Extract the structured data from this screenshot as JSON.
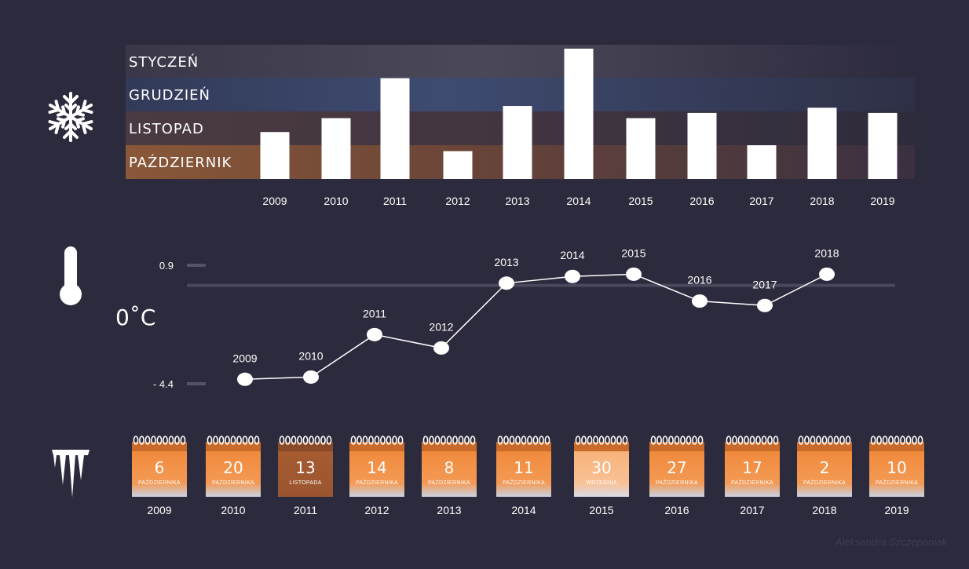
{
  "colors": {
    "background": "#2c2a3d",
    "band_styczen": "#4a4858",
    "band_grudzien": "#3e4a6c",
    "band_listopad": "#4c3c44",
    "band_pazdziernik": "#8c5a3a",
    "bar": "#ffffff",
    "line": "#ffffff",
    "calendar_orange": "#f0883a",
    "calendar_light": "#f8b070",
    "calendar_brown": "#a65b30",
    "calendar_bottom": "#c9d2e2"
  },
  "icons": {
    "row1": "snowflake-icon",
    "row2": "thermometer-icon",
    "row3": "icicles-icon"
  },
  "chart_data": [
    {
      "type": "bar",
      "categories": [
        "2009",
        "2010",
        "2011",
        "2012",
        "2013",
        "2014",
        "2015",
        "2016",
        "2017",
        "2018",
        "2019"
      ],
      "band_labels": [
        "STYCZEŃ",
        "GRUDZIEŃ",
        "LISTOPAD",
        "PAŹDZIERNIK"
      ],
      "values": [
        1.35,
        1.75,
        2.9,
        0.8,
        2.1,
        3.75,
        1.75,
        1.9,
        0.97,
        2.05,
        1.9
      ],
      "ylim": [
        0,
        4
      ],
      "title": "",
      "xlabel": "",
      "ylabel": ""
    },
    {
      "type": "line",
      "x": [
        "2009",
        "2010",
        "2011",
        "2012",
        "2013",
        "2014",
        "2015",
        "2016",
        "2017",
        "2018"
      ],
      "values": [
        -4.2,
        -4.1,
        -2.2,
        -2.8,
        0.1,
        0.4,
        0.5,
        -0.7,
        -0.9,
        0.5
      ],
      "point_labels": [
        "2009",
        "2010",
        "2011",
        "2012",
        "2013",
        "2014",
        "2015",
        "2016",
        "2017",
        "2018"
      ],
      "yticks": [
        {
          "value": 0.9,
          "label": "0.9"
        },
        {
          "value": -4.4,
          "label": "- 4.4"
        }
      ],
      "unit_label": "0˚C",
      "reference_line": 0
    },
    {
      "type": "table",
      "items": [
        {
          "year": "2009",
          "day": "6",
          "month": "PAŹDZIERNIKA",
          "tone": "orange"
        },
        {
          "year": "2010",
          "day": "20",
          "month": "PAŹDZIERNIKA",
          "tone": "orange"
        },
        {
          "year": "2011",
          "day": "13",
          "month": "LISTOPADA",
          "tone": "brown"
        },
        {
          "year": "2012",
          "day": "14",
          "month": "PAŹDZIERNIKA",
          "tone": "orange"
        },
        {
          "year": "2013",
          "day": "8",
          "month": "PAŹDZIERNIKA",
          "tone": "orange"
        },
        {
          "year": "2014",
          "day": "11",
          "month": "PAŹDZIERNIKA",
          "tone": "orange"
        },
        {
          "year": "2015",
          "day": "30",
          "month": "WRZEŚNIA",
          "tone": "light"
        },
        {
          "year": "2016",
          "day": "27",
          "month": "PAŹDZIERNIKA",
          "tone": "orange"
        },
        {
          "year": "2017",
          "day": "17",
          "month": "PAŹDZIERNIKA",
          "tone": "orange"
        },
        {
          "year": "2018",
          "day": "2",
          "month": "PAŹDZIERNIKA",
          "tone": "orange"
        },
        {
          "year": "2019",
          "day": "10",
          "month": "PAŹDZIERNIKA",
          "tone": "orange"
        }
      ]
    }
  ],
  "credit": "Aleksandra Szczepaniak"
}
